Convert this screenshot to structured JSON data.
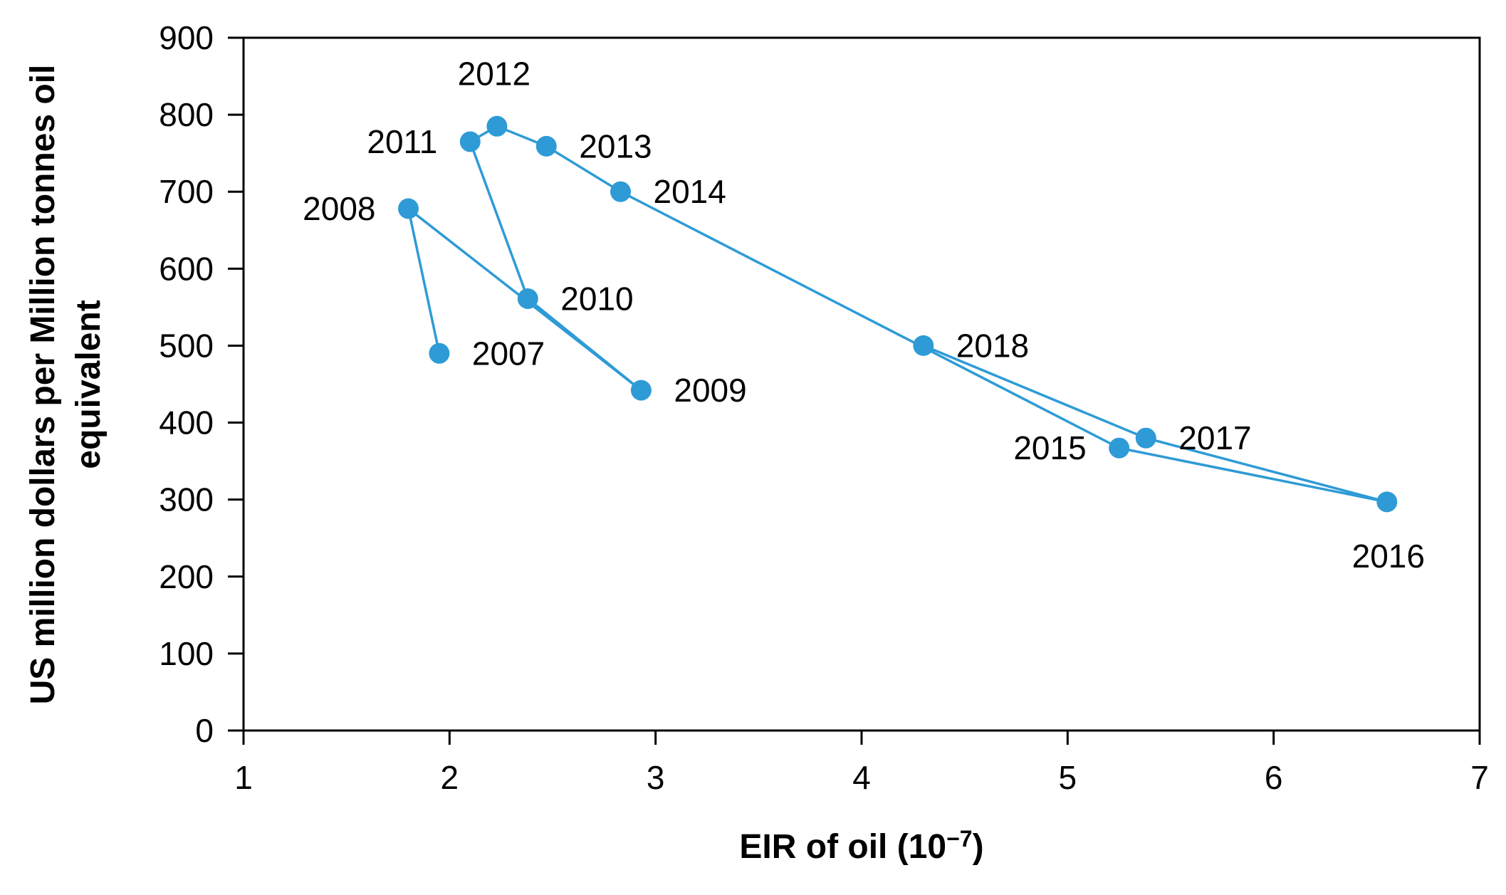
{
  "chart_data": {
    "type": "scatter",
    "title": "",
    "xlabel": "EIR of oil (10−7)",
    "xlabel_base": "EIR of oil (10",
    "xlabel_superscript": "−7",
    "xlabel_close": ")",
    "ylabel": "US million dollars per Million tonnes oil equivalent",
    "ylabel_line1": "US million dollars per Million tonnes oil",
    "ylabel_line2": "equivalent",
    "xlim": [
      1,
      7
    ],
    "ylim": [
      0,
      900
    ],
    "x_ticks": [
      1,
      2,
      3,
      4,
      5,
      6,
      7
    ],
    "y_ticks": [
      0,
      100,
      200,
      300,
      400,
      500,
      600,
      700,
      800,
      900
    ],
    "grid": false,
    "legend": "none",
    "series_color": "#2E9BD6",
    "points": [
      {
        "year": "2007",
        "x": 1.95,
        "y": 490,
        "label_pos": "right"
      },
      {
        "year": "2008",
        "x": 1.8,
        "y": 678,
        "label_pos": "left"
      },
      {
        "year": "2009",
        "x": 2.93,
        "y": 442,
        "label_pos": "right"
      },
      {
        "year": "2010",
        "x": 2.38,
        "y": 561,
        "label_pos": "right"
      },
      {
        "year": "2011",
        "x": 2.1,
        "y": 765,
        "label_pos": "left"
      },
      {
        "year": "2012",
        "x": 2.23,
        "y": 785,
        "label_pos": "above"
      },
      {
        "year": "2013",
        "x": 2.47,
        "y": 759,
        "label_pos": "right"
      },
      {
        "year": "2014",
        "x": 2.83,
        "y": 700,
        "label_pos": "right"
      },
      {
        "year": "2015",
        "x": 5.25,
        "y": 367,
        "label_pos": "left"
      },
      {
        "year": "2016",
        "x": 6.55,
        "y": 297,
        "label_pos": "below"
      },
      {
        "year": "2017",
        "x": 5.38,
        "y": 380,
        "label_pos": "right"
      },
      {
        "year": "2018",
        "x": 4.3,
        "y": 500,
        "label_pos": "right"
      }
    ],
    "connect_order": [
      "2007",
      "2008",
      "2009",
      "2010",
      "2011",
      "2012",
      "2013",
      "2014",
      "2015",
      "2016",
      "2017",
      "2018"
    ]
  }
}
